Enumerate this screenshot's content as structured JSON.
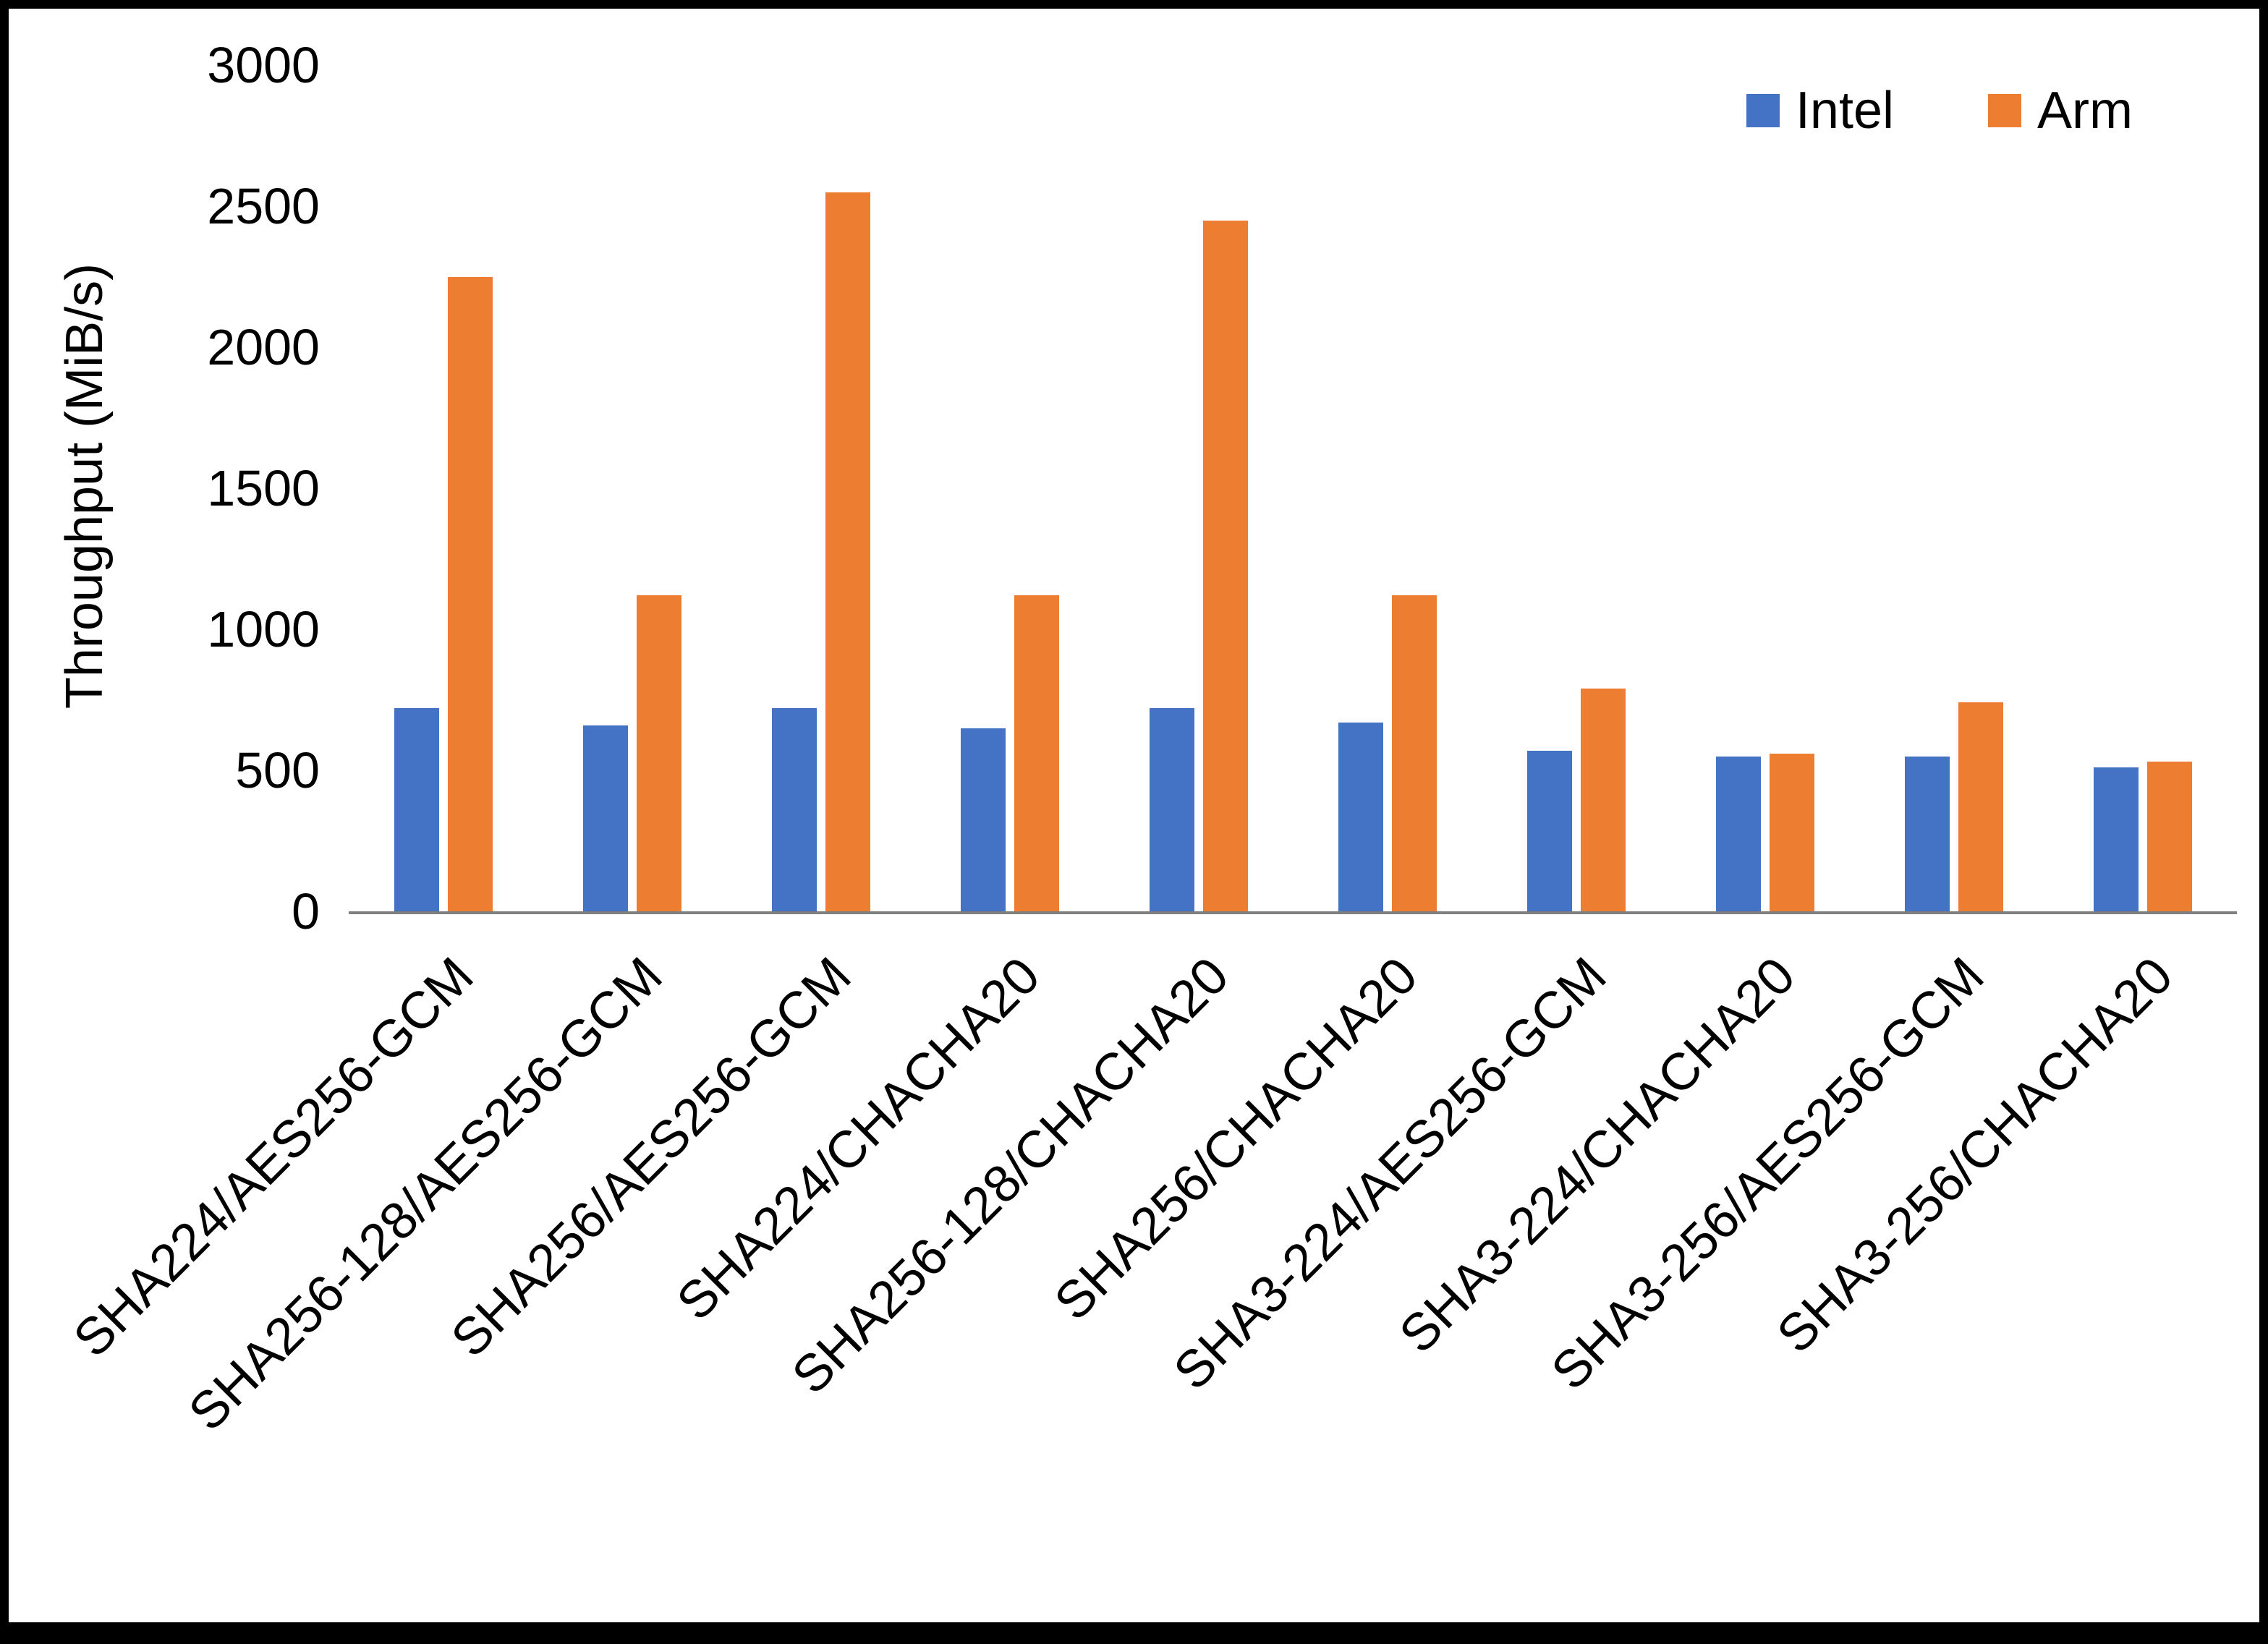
{
  "figure": {
    "background_color": "#ffffff",
    "border_color": "#000000",
    "axis_line_color": "#7f7f7f"
  },
  "legend": {
    "position": "top-right",
    "items": [
      {
        "label": "Intel",
        "color": "#4472C4"
      },
      {
        "label": "Arm",
        "color": "#ED7D31"
      }
    ]
  },
  "chart_data": {
    "type": "bar",
    "title": "",
    "xlabel": "",
    "ylabel": "Throughput (MiB/s)",
    "ylim": [
      0,
      3000
    ],
    "yticks": [
      0,
      500,
      1000,
      1500,
      2000,
      2500,
      3000
    ],
    "grid": false,
    "legend_position": "top-right",
    "categories": [
      "SHA224/AES256-GCM",
      "SHA256-128/AES256-GCM",
      "SHA256/AES256-GCM",
      "SHA224/CHACHA20",
      "SHA256-128/CHACHA20",
      "SHA256/CHACHA20",
      "SHA3-224/AES256-GCM",
      "SHA3-224/CHACHA20",
      "SHA3-256/AES256-GCM",
      "SHA3-256/CHACHA20"
    ],
    "series": [
      {
        "name": "Intel",
        "color": "#4472C4",
        "values": [
          720,
          660,
          720,
          650,
          720,
          670,
          570,
          550,
          550,
          510
        ]
      },
      {
        "name": "Arm",
        "color": "#ED7D31",
        "values": [
          2250,
          1120,
          2550,
          1120,
          2450,
          1120,
          790,
          560,
          740,
          530
        ]
      }
    ]
  }
}
